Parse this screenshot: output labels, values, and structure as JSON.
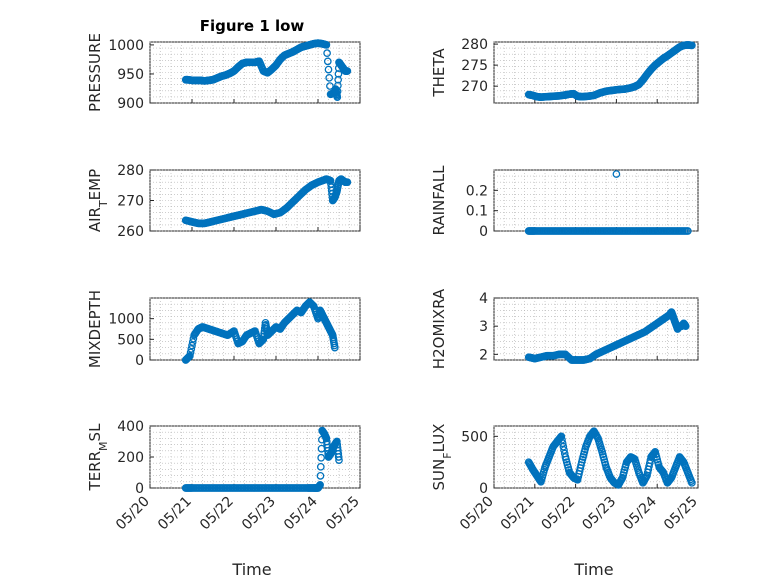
{
  "figure": {
    "title": "Figure 1 low",
    "xlabel": "Time",
    "marker_color": "#0072BD",
    "x_ticks": [
      "05/20",
      "05/21",
      "05/22",
      "05/23",
      "05/24",
      "05/25"
    ]
  },
  "chart_data": [
    {
      "type": "scatter",
      "ylabel": "PRESSURE",
      "xlim": [
        0,
        5
      ],
      "ylim": [
        900,
        1005
      ],
      "yticks": [
        900,
        950,
        1000
      ],
      "grid": true,
      "series": [
        {
          "x": [
            0.85,
            0.9,
            1.0,
            1.1,
            1.2,
            1.3,
            1.4,
            1.5,
            1.6,
            1.7,
            1.8,
            1.9,
            2.0,
            2.1,
            2.2,
            2.3,
            2.4,
            2.5,
            2.6,
            2.7,
            2.8,
            2.9,
            3.0,
            3.1,
            3.2,
            3.3,
            3.4,
            3.5,
            3.6,
            3.7,
            3.8,
            3.9,
            4.0,
            4.1,
            4.2,
            4.3,
            4.4,
            4.42,
            4.46,
            4.5,
            4.55,
            4.6,
            4.65,
            4.7
          ],
          "y": [
            940,
            940,
            939,
            939,
            939,
            938,
            939,
            940,
            943,
            946,
            948,
            951,
            955,
            962,
            968,
            970,
            970,
            970,
            972,
            955,
            952,
            958,
            965,
            975,
            982,
            985,
            988,
            992,
            996,
            998,
            1000,
            1002,
            1003,
            1002,
            1000,
            915,
            918,
            924,
            910,
            970,
            965,
            960,
            955,
            955
          ]
        }
      ]
    },
    {
      "type": "scatter",
      "ylabel": "THETA",
      "xlim": [
        0,
        5
      ],
      "ylim": [
        266,
        280.5
      ],
      "yticks": [
        270,
        275,
        280
      ],
      "grid": true,
      "series": [
        {
          "x": [
            0.85,
            0.95,
            1.05,
            1.15,
            1.3,
            1.45,
            1.6,
            1.75,
            1.85,
            1.95,
            2.05,
            2.15,
            2.3,
            2.45,
            2.6,
            2.75,
            2.9,
            3.05,
            3.2,
            3.35,
            3.45,
            3.55,
            3.65,
            3.75,
            3.85,
            3.95,
            4.05,
            4.15,
            4.25,
            4.35,
            4.45,
            4.55,
            4.65,
            4.75,
            4.85
          ],
          "y": [
            268,
            267.8,
            267.5,
            267.4,
            267.5,
            267.6,
            267.7,
            267.9,
            268.1,
            268.2,
            267.6,
            267.5,
            267.6,
            267.8,
            268.4,
            268.8,
            269.0,
            269.2,
            269.3,
            269.6,
            269.9,
            270.4,
            271.5,
            272.8,
            274.0,
            275.0,
            275.8,
            276.6,
            277.2,
            277.9,
            278.6,
            279.3,
            279.7,
            279.8,
            279.7
          ]
        }
      ]
    },
    {
      "type": "scatter",
      "ylabel": "AIR_TEMP",
      "xlim": [
        0,
        5
      ],
      "ylim": [
        260,
        280
      ],
      "yticks": [
        260,
        270,
        280
      ],
      "grid": true,
      "series": [
        {
          "x": [
            0.85,
            1.0,
            1.15,
            1.3,
            1.45,
            1.6,
            1.75,
            1.9,
            2.05,
            2.2,
            2.35,
            2.5,
            2.65,
            2.8,
            2.95,
            3.1,
            3.25,
            3.4,
            3.55,
            3.7,
            3.85,
            4.0,
            4.1,
            4.2,
            4.3,
            4.35,
            4.4,
            4.45,
            4.5,
            4.55,
            4.6,
            4.65,
            4.7
          ],
          "y": [
            263.5,
            263,
            262.5,
            262.5,
            263,
            263.5,
            264,
            264.5,
            265,
            265.5,
            266,
            266.5,
            267,
            266.5,
            265.5,
            266,
            267.5,
            269.5,
            271.5,
            273.5,
            275,
            276,
            276.5,
            277,
            276.5,
            270,
            271,
            273,
            276.5,
            277,
            276.5,
            276,
            276
          ]
        }
      ]
    },
    {
      "type": "scatter",
      "ylabel": "RAINFALL",
      "xlim": [
        0,
        5
      ],
      "ylim": [
        0,
        0.3
      ],
      "yticks": [
        0,
        0.1,
        0.2
      ],
      "grid": true,
      "series": [
        {
          "x": [
            0.85,
            1.0,
            1.25,
            1.5,
            1.75,
            2.0,
            2.25,
            2.5,
            2.75,
            3.0,
            3.25,
            3.5,
            3.75,
            4.0,
            4.25,
            4.5,
            4.75,
            3.0
          ],
          "y": [
            0,
            0,
            0,
            0,
            0,
            0,
            0,
            0,
            0,
            0,
            0,
            0,
            0,
            0,
            0,
            0,
            0,
            0.28
          ]
        }
      ]
    },
    {
      "type": "scatter",
      "ylabel": "MIXDEPTH",
      "xlim": [
        0,
        5
      ],
      "ylim": [
        0,
        1500
      ],
      "yticks": [
        0,
        500,
        1000
      ],
      "grid": true,
      "series": [
        {
          "x": [
            0.85,
            0.95,
            1.05,
            1.15,
            1.25,
            1.4,
            1.55,
            1.7,
            1.85,
            2.0,
            2.1,
            2.2,
            2.3,
            2.4,
            2.5,
            2.6,
            2.7,
            2.75,
            2.8,
            2.9,
            3.0,
            3.1,
            3.2,
            3.3,
            3.4,
            3.5,
            3.6,
            3.7,
            3.8,
            3.9,
            4.0,
            4.05,
            4.1,
            4.15,
            4.2,
            4.25,
            4.3,
            4.35,
            4.4
          ],
          "y": [
            0,
            100,
            600,
            750,
            800,
            750,
            700,
            650,
            600,
            700,
            400,
            450,
            600,
            650,
            700,
            400,
            500,
            900,
            600,
            700,
            800,
            750,
            900,
            1000,
            1100,
            1200,
            1150,
            1300,
            1400,
            1300,
            1000,
            1200,
            1100,
            1000,
            900,
            800,
            700,
            600,
            300
          ]
        }
      ]
    },
    {
      "type": "scatter",
      "ylabel": "H2OMIXRA",
      "xlim": [
        0,
        5
      ],
      "ylim": [
        1.8,
        4
      ],
      "yticks": [
        2,
        3,
        4
      ],
      "grid": true,
      "series": [
        {
          "x": [
            0.85,
            1.0,
            1.15,
            1.3,
            1.45,
            1.6,
            1.75,
            1.9,
            2.05,
            2.2,
            2.35,
            2.5,
            2.65,
            2.8,
            2.95,
            3.1,
            3.25,
            3.4,
            3.55,
            3.7,
            3.85,
            4.0,
            4.1,
            4.2,
            4.3,
            4.35,
            4.4,
            4.45,
            4.5,
            4.55,
            4.6,
            4.65,
            4.7
          ],
          "y": [
            1.9,
            1.85,
            1.9,
            1.95,
            1.95,
            2.0,
            2.0,
            1.8,
            1.8,
            1.8,
            1.85,
            2.0,
            2.1,
            2.2,
            2.3,
            2.4,
            2.5,
            2.6,
            2.7,
            2.8,
            2.95,
            3.1,
            3.2,
            3.3,
            3.4,
            3.5,
            3.3,
            3.1,
            2.9,
            3.0,
            3.0,
            3.1,
            3.0
          ]
        }
      ]
    },
    {
      "type": "scatter",
      "ylabel": "TERR_MSL",
      "xlim": [
        0,
        5
      ],
      "ylim": [
        0,
        400
      ],
      "yticks": [
        0,
        200,
        400
      ],
      "grid": true,
      "series": [
        {
          "x": [
            0.85,
            1.0,
            1.25,
            1.5,
            1.75,
            2.0,
            2.25,
            2.5,
            2.75,
            3.0,
            3.25,
            3.5,
            3.75,
            3.9,
            4.0,
            4.05,
            4.1,
            4.15,
            4.2,
            4.25,
            4.3,
            4.35,
            4.4,
            4.45,
            4.5
          ],
          "y": [
            0,
            0,
            0,
            0,
            0,
            0,
            0,
            0,
            0,
            0,
            0,
            0,
            0,
            0,
            0,
            20,
            370,
            350,
            320,
            200,
            220,
            250,
            280,
            300,
            180
          ]
        }
      ]
    },
    {
      "type": "scatter",
      "ylabel": "SUN_FLUX",
      "xlim": [
        0,
        5
      ],
      "ylim": [
        0,
        600
      ],
      "yticks": [
        0,
        500
      ],
      "grid": true,
      "series": [
        {
          "x": [
            0.85,
            0.95,
            1.05,
            1.15,
            1.25,
            1.35,
            1.45,
            1.55,
            1.65,
            1.75,
            1.85,
            1.95,
            2.05,
            2.15,
            2.25,
            2.35,
            2.45,
            2.55,
            2.65,
            2.75,
            2.85,
            2.95,
            3.05,
            3.15,
            3.25,
            3.35,
            3.45,
            3.55,
            3.65,
            3.75,
            3.85,
            3.95,
            4.05,
            4.15,
            4.25,
            4.35,
            4.45,
            4.55,
            4.65,
            4.75,
            4.85
          ],
          "y": [
            250,
            180,
            120,
            60,
            200,
            300,
            400,
            450,
            500,
            300,
            150,
            100,
            80,
            250,
            400,
            500,
            550,
            480,
            350,
            200,
            100,
            50,
            30,
            100,
            250,
            300,
            280,
            150,
            50,
            120,
            300,
            350,
            200,
            150,
            50,
            100,
            200,
            300,
            250,
            150,
            50
          ]
        }
      ]
    }
  ]
}
